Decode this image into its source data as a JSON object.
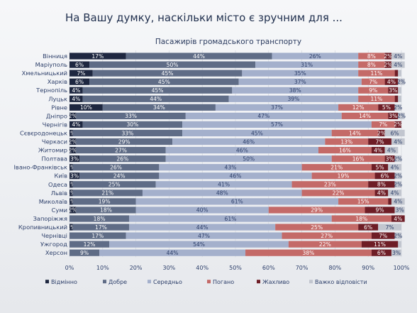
{
  "heading": "На Вашу думку, наскільки місто є зручним для ...",
  "chart_data": {
    "type": "bar",
    "orientation": "horizontal",
    "stacked": true,
    "title": "Пасажирів громадського транспорту",
    "xlim": [
      0,
      100
    ],
    "x_ticks": [
      "0%",
      "10%",
      "20%",
      "30%",
      "40%",
      "50%",
      "60%",
      "70%",
      "80%",
      "90%",
      "100%"
    ],
    "categories": [
      "Вінниця",
      "Маріуполь",
      "Хмельницький",
      "Харків",
      "Тернопіль",
      "Луцьк",
      "Рівне",
      "Дніпро",
      "Чернігів",
      "Сєвєродонецьк",
      "Черкаси",
      "Житомир",
      "Полтава",
      "Івано-Франківськ",
      "Київ",
      "Одеса",
      "Львів",
      "Миколаїв",
      "Суми",
      "Запоріжжя",
      "Кропивницький",
      "Чернівці",
      "Ужгород",
      "Херсон"
    ],
    "series": [
      {
        "name": "Відмінно",
        "color": "#1e2740",
        "values": [
          17,
          6,
          7,
          6,
          4,
          4,
          10,
          2,
          4,
          1,
          2,
          2,
          3,
          1,
          3,
          1,
          1,
          1,
          2,
          0,
          1,
          0,
          0,
          0
        ]
      },
      {
        "name": "Добре",
        "color": "#5f6c86",
        "values": [
          44,
          50,
          45,
          45,
          45,
          44,
          34,
          33,
          30,
          33,
          29,
          27,
          26,
          26,
          24,
          25,
          21,
          19,
          18,
          18,
          17,
          17,
          12,
          9
        ]
      },
      {
        "name": "Середньо",
        "color": "#a4b0cc",
        "values": [
          26,
          31,
          35,
          37,
          38,
          39,
          37,
          47,
          57,
          45,
          46,
          46,
          50,
          43,
          46,
          41,
          48,
          61,
          40,
          61,
          44,
          47,
          54,
          44
        ]
      },
      {
        "name": "Погано",
        "color": "#c46a68",
        "values": [
          8,
          8,
          11,
          7,
          9,
          11,
          12,
          14,
          7,
          14,
          13,
          16,
          16,
          21,
          19,
          23,
          22,
          15,
          29,
          18,
          25,
          27,
          22,
          38
        ]
      },
      {
        "name": "Жахливо",
        "color": "#6e1d26",
        "values": [
          2,
          2,
          1,
          4,
          3,
          1,
          5,
          3,
          2,
          2,
          7,
          4,
          3,
          5,
          6,
          8,
          4,
          1,
          9,
          4,
          6,
          7,
          11,
          6
        ]
      },
      {
        "name": "Важко відповісти",
        "color": "#c2c6cf",
        "values": [
          4,
          4,
          1,
          2,
          1,
          1,
          2,
          2,
          0,
          6,
          4,
          4,
          2,
          4,
          2,
          2,
          4,
          4,
          3,
          0,
          7,
          2,
          1,
          3
        ]
      }
    ],
    "legend": {
      "position": "bottom"
    },
    "grid": true
  }
}
